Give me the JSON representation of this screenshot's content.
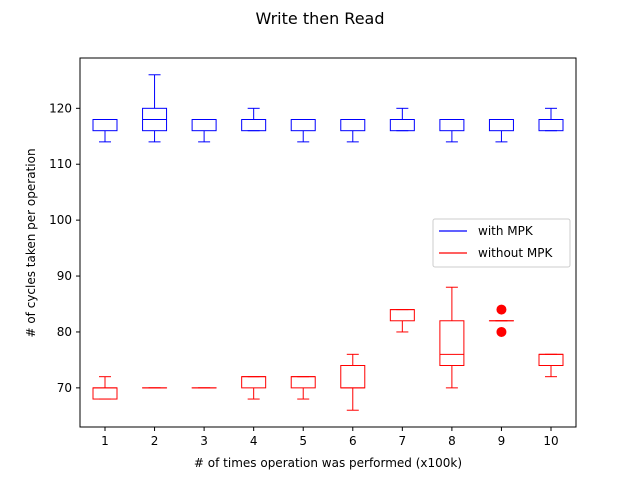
{
  "chart_data": {
    "type": "boxplot",
    "title": "Write then Read",
    "xlabel": "# of times operation was performed (x100k)",
    "ylabel": "# of cycles taken per operation",
    "categories": [
      "1",
      "2",
      "3",
      "4",
      "5",
      "6",
      "7",
      "8",
      "9",
      "10"
    ],
    "ylim": [
      63,
      129
    ],
    "yticks": [
      70,
      80,
      90,
      100,
      110,
      120
    ],
    "grid": false,
    "legend_position": "center-right",
    "series": [
      {
        "name": "with MPK",
        "color": "#0000ff",
        "boxes": [
          {
            "whislo": 114,
            "q1": 116,
            "med": 118,
            "q3": 118,
            "whishi": 118,
            "fliers": []
          },
          {
            "whislo": 114,
            "q1": 116,
            "med": 118,
            "q3": 120,
            "whishi": 126,
            "fliers": []
          },
          {
            "whislo": 114,
            "q1": 116,
            "med": 118,
            "q3": 118,
            "whishi": 118,
            "fliers": []
          },
          {
            "whislo": 116,
            "q1": 116,
            "med": 118,
            "q3": 118,
            "whishi": 120,
            "fliers": []
          },
          {
            "whislo": 114,
            "q1": 116,
            "med": 118,
            "q3": 118,
            "whishi": 118,
            "fliers": []
          },
          {
            "whislo": 114,
            "q1": 116,
            "med": 118,
            "q3": 118,
            "whishi": 118,
            "fliers": []
          },
          {
            "whislo": 116,
            "q1": 116,
            "med": 118,
            "q3": 118,
            "whishi": 120,
            "fliers": []
          },
          {
            "whislo": 114,
            "q1": 116,
            "med": 118,
            "q3": 118,
            "whishi": 118,
            "fliers": []
          },
          {
            "whislo": 114,
            "q1": 116,
            "med": 118,
            "q3": 118,
            "whishi": 118,
            "fliers": []
          },
          {
            "whislo": 116,
            "q1": 116,
            "med": 118,
            "q3": 118,
            "whishi": 120,
            "fliers": []
          }
        ]
      },
      {
        "name": "without MPK",
        "color": "#ff0000",
        "boxes": [
          {
            "whislo": 68,
            "q1": 68,
            "med": 70,
            "q3": 70,
            "whishi": 72,
            "fliers": []
          },
          {
            "whislo": 70,
            "q1": 70,
            "med": 70,
            "q3": 70,
            "whishi": 70,
            "fliers": []
          },
          {
            "whislo": 70,
            "q1": 70,
            "med": 70,
            "q3": 70,
            "whishi": 70,
            "fliers": []
          },
          {
            "whislo": 68,
            "q1": 70,
            "med": 72,
            "q3": 72,
            "whishi": 72,
            "fliers": []
          },
          {
            "whislo": 68,
            "q1": 70,
            "med": 72,
            "q3": 72,
            "whishi": 72,
            "fliers": []
          },
          {
            "whislo": 66,
            "q1": 70,
            "med": 70,
            "q3": 74,
            "whishi": 76,
            "fliers": []
          },
          {
            "whislo": 80,
            "q1": 82,
            "med": 84,
            "q3": 84,
            "whishi": 84,
            "fliers": []
          },
          {
            "whislo": 70,
            "q1": 74,
            "med": 76,
            "q3": 82,
            "whishi": 88,
            "fliers": []
          },
          {
            "whislo": 82,
            "q1": 82,
            "med": 82,
            "q3": 82,
            "whishi": 82,
            "fliers": [
              80,
              84
            ]
          },
          {
            "whislo": 72,
            "q1": 74,
            "med": 76,
            "q3": 76,
            "whishi": 76,
            "fliers": []
          }
        ]
      }
    ]
  }
}
